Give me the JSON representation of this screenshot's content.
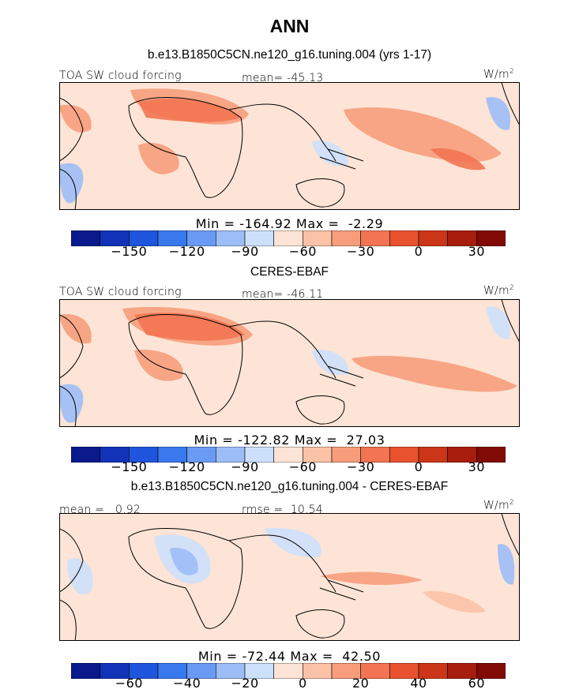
{
  "page": {
    "title": "ANN"
  },
  "palette": {
    "colors": [
      "#0a1a8c",
      "#1232b8",
      "#1f55dc",
      "#3a78ee",
      "#6a9bf4",
      "#9dbdf7",
      "#cde0fb",
      "#fde4d6",
      "#fbc2a7",
      "#f79d7c",
      "#f27452",
      "#e8522f",
      "#cc3618",
      "#a81e0e",
      "#820a05"
    ]
  },
  "colors": {
    "land": "#000000",
    "neutral": "#fde4d6"
  },
  "panels": [
    {
      "id": "model",
      "title": "b.e13.B1850C5CN.ne120_g16.tuning.004 (yrs 1-17)",
      "left_label": "TOA SW cloud forcing",
      "stat_label": "mean= -45.13",
      "unit_base": "W/m",
      "unit_exp": "2",
      "minmax": "Min = -164.92 Max =  -2.29",
      "colorbar_ticks": [
        "-150",
        "-120",
        "-90",
        "-60",
        "-30",
        "0",
        "30"
      ]
    },
    {
      "id": "obs",
      "title": "CERES-EBAF",
      "left_label": "TOA SW cloud forcing",
      "stat_label": "mean= -46.11",
      "unit_base": "W/m",
      "unit_exp": "2",
      "minmax": "Min = -122.82 Max =  27.03",
      "colorbar_ticks": [
        "-150",
        "-120",
        "-90",
        "-60",
        "-30",
        "0",
        "30"
      ]
    },
    {
      "id": "diff",
      "title": "b.e13.B1850C5CN.ne120_g16.tuning.004 - CERES-EBAF",
      "left_label": "mean =   0.92",
      "stat_label": "rmse =  10.54",
      "unit_base": "W/m",
      "unit_exp": "2",
      "minmax": "Min = -72.44 Max =  42.50",
      "colorbar_ticks": [
        "-60",
        "-40",
        "-20",
        "0",
        "20",
        "40",
        "60"
      ]
    }
  ],
  "chart_data": [
    {
      "type": "heatmap",
      "title": "b.e13.B1850C5CN.ne120_g16.tuning.004 (yrs 1-17)",
      "variable": "TOA SW cloud forcing",
      "units": "W/m2",
      "mean": -45.13,
      "min": -164.92,
      "max": -2.29,
      "colorbar_levels": [
        -150,
        -120,
        -90,
        -60,
        -30,
        0,
        30
      ]
    },
    {
      "type": "heatmap",
      "title": "CERES-EBAF",
      "variable": "TOA SW cloud forcing",
      "units": "W/m2",
      "mean": -46.11,
      "min": -122.82,
      "max": 27.03,
      "colorbar_levels": [
        -150,
        -120,
        -90,
        -60,
        -30,
        0,
        30
      ]
    },
    {
      "type": "heatmap",
      "title": "b.e13.B1850C5CN.ne120_g16.tuning.004 - CERES-EBAF",
      "units": "W/m2",
      "mean": 0.92,
      "rmse": 10.54,
      "min": -72.44,
      "max": 42.5,
      "colorbar_levels": [
        -60,
        -40,
        -20,
        0,
        20,
        40,
        60
      ]
    }
  ]
}
